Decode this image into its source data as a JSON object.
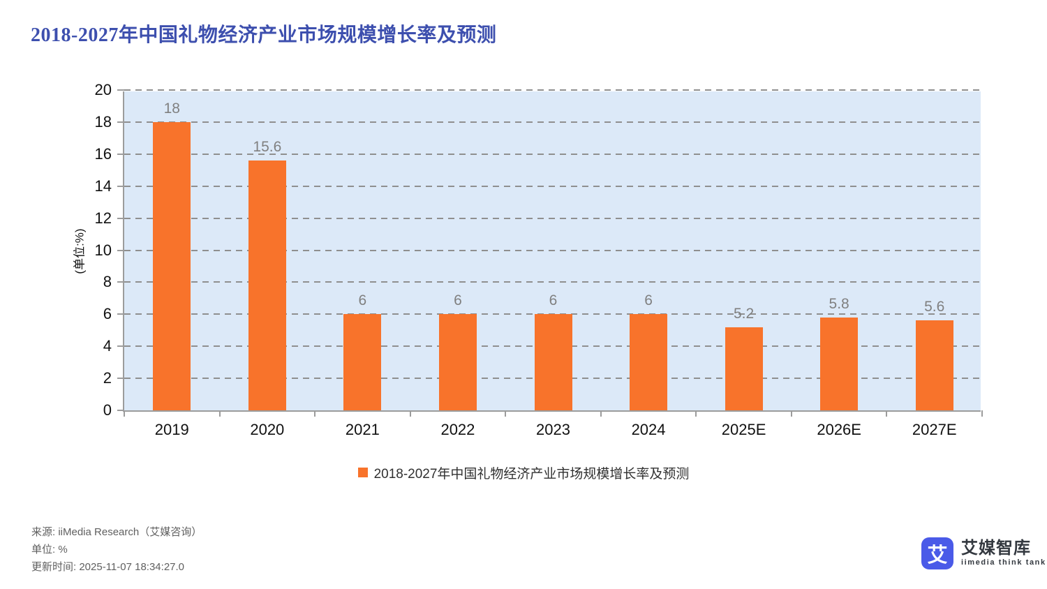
{
  "page": {
    "title": "2018-2027年中国礼物经济产业市场规模增长率及预测"
  },
  "chart_data": {
    "type": "bar",
    "title": "2018-2027年中国礼物经济产业市场规模增长率及预测",
    "categories": [
      "2019",
      "2020",
      "2021",
      "2022",
      "2023",
      "2024",
      "2025E",
      "2026E",
      "2027E"
    ],
    "values": [
      18,
      15.6,
      6,
      6,
      6,
      6,
      5.2,
      5.8,
      5.6
    ],
    "xlabel": "",
    "ylabel": "(单位:%)",
    "ylim": [
      0,
      20
    ],
    "ytick_step": 2,
    "grid": "dashed-horizontal",
    "legend": [
      "2018-2027年中国礼物经济产业市场规模增长率及预测"
    ],
    "legend_position": "bottom",
    "bar_color": "#f8732b",
    "plot_bg": "#dce9f8"
  },
  "styles": {
    "title_color": "#3d4fae",
    "grid_color": "#8f8f8f",
    "axis_color": "#9c9c9c",
    "data_label_color": "#808080",
    "footer_text_color": "#5f5f5f",
    "logo_blue": "#4a5ae8"
  },
  "footer": {
    "source": "来源: iiMedia Research（艾媒咨询）",
    "unit": "单位: %",
    "updated": "更新时间: 2025-11-07 18:34:27.0"
  },
  "logo": {
    "glyph": "艾",
    "name_cn": "艾媒智库",
    "name_en": "iimedia think tank"
  }
}
